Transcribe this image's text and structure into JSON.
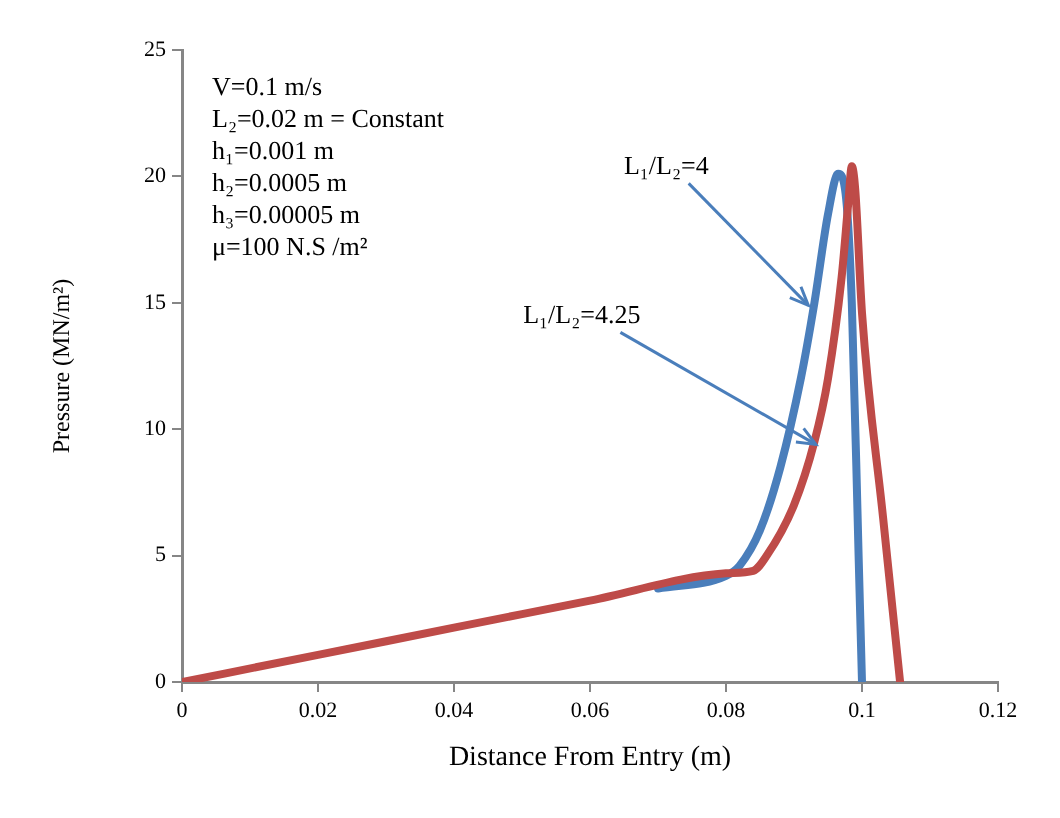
{
  "chart_data": {
    "type": "line",
    "xlabel": "Distance From Entry (m)",
    "ylabel": "Pressure (MN/m²)",
    "xlim": [
      0,
      0.12
    ],
    "xticks": [
      0,
      0.02,
      0.04,
      0.06,
      0.08,
      0.1,
      0.12
    ],
    "ylim": [
      0,
      25
    ],
    "yticks": [
      0,
      5,
      10,
      15,
      20,
      25
    ],
    "grid": false,
    "legend": false,
    "marker": "none",
    "line_style": "solid",
    "series": [
      {
        "color": "#4a7ebb",
        "x": [
          0.07,
          0.08,
          0.082,
          0.085,
          0.088,
          0.091,
          0.093,
          0.095,
          0.0965,
          0.0975,
          0.0985,
          0.0995,
          0.1
        ],
        "values": [
          3.7,
          4.2,
          4.6,
          6,
          8.5,
          12,
          15,
          18.5,
          20.1,
          19.5,
          15,
          5,
          0
        ]
      },
      {
        "color": "#be4b48",
        "x": [
          0,
          0.02,
          0.04,
          0.06,
          0.08,
          0.084,
          0.086,
          0.09,
          0.093,
          0.095,
          0.097,
          0.098,
          0.0985,
          0.099,
          0.1,
          0.1031,
          0.1056
        ],
        "values": [
          0,
          1.07,
          2.15,
          3.22,
          4.3,
          4.4,
          5,
          7,
          9.5,
          12,
          16,
          19,
          20.4,
          19.5,
          14.6,
          6.5,
          0
        ]
      }
    ],
    "annotations": [
      "V=0.1 m/s",
      "L₂=0.02 m = Constant",
      "h₁=0.001 m",
      "h₂=0.0005 m",
      "h₃=0.00005 m",
      "μ=100 N.S /m²",
      {
        "text": "L₁/L₂=4",
        "x": 0.0921,
        "y": 14.9
      },
      {
        "text": "L₁/L₂=4.25",
        "x": 0.0932,
        "y": 9.4
      }
    ]
  }
}
